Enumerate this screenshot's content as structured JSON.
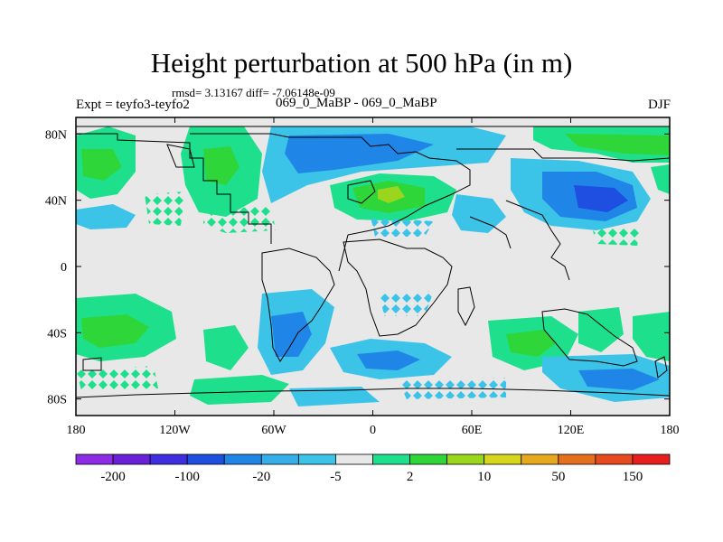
{
  "title": "Height perturbation at 500 hPa (in m)",
  "stats": "rmsd= 3.13167 diff= -7.06148e-09",
  "experiment": "Expt = teyfo3-teyfo2",
  "case": "069_0_MaBP - 069_0_MaBP",
  "season": "DJF",
  "map": {
    "x_ticks": [
      "180",
      "120W",
      "60W",
      "0",
      "60E",
      "120E",
      "180"
    ],
    "y_ticks": [
      "80N",
      "40N",
      "0",
      "40S",
      "80S"
    ],
    "background_color": "#e8e8e8",
    "coastline_color": "#000000"
  },
  "colorbar": {
    "colors": [
      "#8c2ce6",
      "#6a1fd9",
      "#3f2ee0",
      "#1f4fe0",
      "#1f85e6",
      "#36aee8",
      "#3cc4e8",
      "#e8e8e8",
      "#1ee08c",
      "#2ed63a",
      "#9ad61e",
      "#d6d61e",
      "#e6a81e",
      "#e66f1e",
      "#e64a1e",
      "#e61e1e"
    ],
    "labels": [
      "-200",
      "-100",
      "-20",
      "-5",
      "2",
      "10",
      "50",
      "150"
    ]
  }
}
